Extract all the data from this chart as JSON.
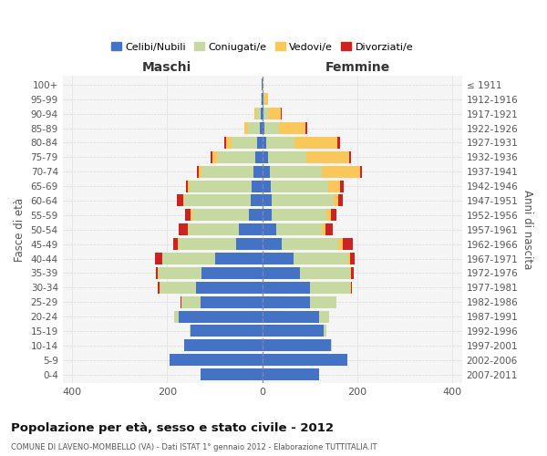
{
  "age_groups": [
    "0-4",
    "5-9",
    "10-14",
    "15-19",
    "20-24",
    "25-29",
    "30-34",
    "35-39",
    "40-44",
    "45-49",
    "50-54",
    "55-59",
    "60-64",
    "65-69",
    "70-74",
    "75-79",
    "80-84",
    "85-89",
    "90-94",
    "95-99",
    "100+"
  ],
  "birth_years": [
    "2007-2011",
    "2002-2006",
    "1997-2001",
    "1992-1996",
    "1987-1991",
    "1982-1986",
    "1977-1981",
    "1972-1976",
    "1967-1971",
    "1962-1966",
    "1957-1961",
    "1952-1956",
    "1947-1951",
    "1942-1946",
    "1937-1941",
    "1932-1936",
    "1927-1931",
    "1922-1926",
    "1917-1921",
    "1912-1916",
    "≤ 1911"
  ],
  "maschi": {
    "celibi": [
      130,
      195,
      165,
      150,
      175,
      130,
      140,
      128,
      100,
      55,
      50,
      28,
      25,
      22,
      18,
      14,
      10,
      5,
      4,
      1,
      1
    ],
    "coniugati": [
      0,
      0,
      0,
      2,
      10,
      40,
      75,
      90,
      110,
      120,
      105,
      120,
      140,
      130,
      110,
      80,
      55,
      25,
      8,
      2,
      0
    ],
    "vedovi": [
      0,
      0,
      0,
      0,
      1,
      1,
      1,
      1,
      1,
      2,
      2,
      2,
      2,
      4,
      5,
      10,
      12,
      8,
      4,
      1,
      0
    ],
    "divorziati": [
      0,
      0,
      0,
      0,
      0,
      1,
      3,
      5,
      15,
      10,
      18,
      12,
      12,
      5,
      5,
      5,
      2,
      0,
      0,
      0,
      0
    ]
  },
  "femmine": {
    "nubili": [
      120,
      178,
      145,
      130,
      120,
      100,
      100,
      80,
      65,
      40,
      30,
      20,
      20,
      18,
      15,
      12,
      8,
      5,
      3,
      2,
      1
    ],
    "coniugate": [
      0,
      0,
      2,
      5,
      20,
      55,
      85,
      105,
      115,
      120,
      95,
      115,
      130,
      120,
      110,
      80,
      60,
      30,
      10,
      2,
      0
    ],
    "vedove": [
      0,
      0,
      0,
      0,
      0,
      0,
      1,
      2,
      5,
      10,
      8,
      10,
      10,
      25,
      80,
      90,
      90,
      55,
      25,
      8,
      2
    ],
    "divorziate": [
      0,
      0,
      0,
      0,
      0,
      1,
      2,
      5,
      10,
      20,
      15,
      10,
      10,
      8,
      5,
      5,
      5,
      5,
      2,
      1,
      0
    ]
  },
  "colors": {
    "celibi": "#4472C4",
    "coniugati": "#C5D9A0",
    "vedovi": "#FAC85A",
    "divorziati": "#CC2222"
  },
  "title": "Popolazione per età, sesso e stato civile - 2012",
  "subtitle": "COMUNE DI LAVENO-MOMBELLO (VA) - Dati ISTAT 1° gennaio 2012 - Elaborazione TUTTITALIA.IT",
  "xlabel_maschi": "Maschi",
  "xlabel_femmine": "Femmine",
  "ylabel_left": "Fasce di età",
  "ylabel_right": "Anni di nascita",
  "xlim": 420,
  "legend_labels": [
    "Celibi/Nubili",
    "Coniugati/e",
    "Vedovi/e",
    "Divorziati/e"
  ],
  "bg_color": "#f5f5f5",
  "grid_color": "#cccccc"
}
